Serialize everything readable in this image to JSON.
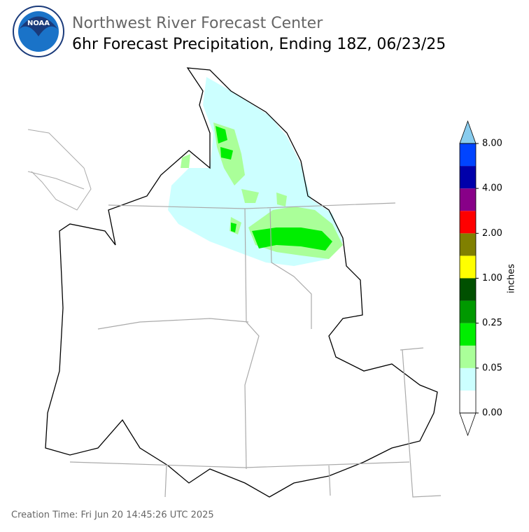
{
  "header": {
    "logo": "NOAA",
    "title": "Northwest River Forecast Center",
    "subtitle": "6hr Forecast Precipitation, Ending 18Z, 06/23/25"
  },
  "colorbar": {
    "label": "inches",
    "ticks": [
      "0.00",
      "0.05",
      "0.25",
      "1.00",
      "2.00",
      "4.00",
      "8.00"
    ],
    "colors": [
      "#ffffff",
      "#ccffff",
      "#aaff99",
      "#00ee00",
      "#009900",
      "#005000",
      "#ffff00",
      "#808000",
      "#ff0000",
      "#880088",
      "#0000aa",
      "#0044ff"
    ],
    "under_color": "#ffffff",
    "over_color": "#88ccee"
  },
  "footer": "Creation Time: Fri Jun 20 14:45:26 UTC 2025"
}
